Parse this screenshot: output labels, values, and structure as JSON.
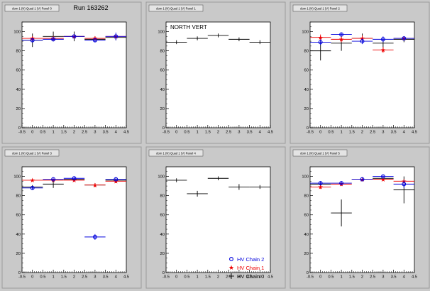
{
  "colors": {
    "pad_bg": "#c9c9c9",
    "frame_bg": "#ffffff",
    "axis": "#000000",
    "chain0": "#000000",
    "chain1": "#ee0000",
    "chain2": "#0000dd"
  },
  "chart_data": [
    {
      "type": "scatter",
      "title": "Run 163262",
      "small_title": "dom 1 (N) Quad 1 (V) Panel 0",
      "xlim": [
        -0.5,
        4.5
      ],
      "ylim": [
        0,
        110
      ],
      "xticks": [
        -0.5,
        0,
        0.5,
        1,
        1.5,
        2,
        2.5,
        3,
        3.5,
        4,
        4.5
      ],
      "xtick_labels": [
        "-0.5",
        "0",
        "0.5",
        "1",
        "1.5",
        "2",
        "2.5",
        "3",
        "3.5",
        "4",
        "4.5"
      ],
      "yticks": [
        0,
        20,
        40,
        60,
        80,
        100
      ],
      "ytick_labels": [
        "0",
        "20",
        "40",
        "60",
        "80",
        "100"
      ],
      "series": [
        {
          "key": "chain0",
          "points": [
            {
              "x": 0,
              "y": 91,
              "err": 7
            },
            {
              "x": 1,
              "y": 95,
              "err": 5
            },
            {
              "x": 2,
              "y": 95,
              "err": 5
            },
            {
              "x": 3,
              "y": 92,
              "err": 3
            },
            {
              "x": 4,
              "y": 94,
              "err": 3
            }
          ]
        },
        {
          "key": "chain1",
          "points": [
            {
              "x": 0,
              "y": 93,
              "err": 2
            },
            {
              "x": 1,
              "y": 93,
              "err": 2
            },
            {
              "x": 2,
              "y": 95,
              "err": 2
            },
            {
              "x": 3,
              "y": 93,
              "err": 2
            },
            {
              "x": 4,
              "y": 95,
              "err": 2
            }
          ]
        },
        {
          "key": "chain2",
          "points": [
            {
              "x": 0,
              "y": 91,
              "err": 2
            },
            {
              "x": 1,
              "y": 92,
              "err": 2
            },
            {
              "x": 2,
              "y": 95,
              "err": 2
            },
            {
              "x": 3,
              "y": 91,
              "err": 2
            },
            {
              "x": 4,
              "y": 95,
              "err": 4
            }
          ]
        }
      ]
    },
    {
      "type": "scatter",
      "title": "",
      "small_title": "dom 1 (N) Quad 1 (V) Panel 1",
      "annotation": "NORTH VERT",
      "xlim": [
        -0.5,
        4.5
      ],
      "ylim": [
        0,
        110
      ],
      "xticks": [
        -0.5,
        0,
        0.5,
        1,
        1.5,
        2,
        2.5,
        3,
        3.5,
        4,
        4.5
      ],
      "xtick_labels": [
        "-0.5",
        "0",
        "0.5",
        "1",
        "1.5",
        "2",
        "2.5",
        "3",
        "3.5",
        "4",
        "4.5"
      ],
      "yticks": [
        0,
        20,
        40,
        60,
        80,
        100
      ],
      "ytick_labels": [
        "0",
        "20",
        "40",
        "60",
        "80",
        "100"
      ],
      "series": [
        {
          "key": "chain0",
          "points": [
            {
              "x": 0,
              "y": 89,
              "err": 2
            },
            {
              "x": 1,
              "y": 93,
              "err": 2
            },
            {
              "x": 2,
              "y": 96,
              "err": 2
            },
            {
              "x": 3,
              "y": 92,
              "err": 2
            },
            {
              "x": 4,
              "y": 89,
              "err": 2
            }
          ]
        }
      ]
    },
    {
      "type": "scatter",
      "title": "",
      "small_title": "dom 1 (N) Quad 1 (V) Panel 2",
      "xlim": [
        -0.5,
        4.5
      ],
      "ylim": [
        0,
        110
      ],
      "xticks": [
        -0.5,
        0,
        0.5,
        1,
        1.5,
        2,
        2.5,
        3,
        3.5,
        4,
        4.5
      ],
      "xtick_labels": [
        "-0.5",
        "0",
        "0.5",
        "1",
        "1.5",
        "2",
        "2.5",
        "3",
        "3.5",
        "4",
        "4.5"
      ],
      "yticks": [
        0,
        20,
        40,
        60,
        80,
        100
      ],
      "ytick_labels": [
        "0",
        "20",
        "40",
        "60",
        "80",
        "100"
      ],
      "series": [
        {
          "key": "chain0",
          "points": [
            {
              "x": 0,
              "y": 80,
              "err": 10
            },
            {
              "x": 1,
              "y": 88,
              "err": 8
            },
            {
              "x": 2,
              "y": 93,
              "err": 5
            },
            {
              "x": 3,
              "y": 88,
              "err": 5
            },
            {
              "x": 4,
              "y": 92,
              "err": 3
            }
          ]
        },
        {
          "key": "chain1",
          "points": [
            {
              "x": 0,
              "y": 94,
              "err": 3
            },
            {
              "x": 1,
              "y": 92,
              "err": 3
            },
            {
              "x": 2,
              "y": 93,
              "err": 3
            },
            {
              "x": 3,
              "y": 81,
              "err": 3
            },
            {
              "x": 4,
              "y": 93,
              "err": 2
            }
          ]
        },
        {
          "key": "chain2",
          "points": [
            {
              "x": 0,
              "y": 89,
              "err": 3
            },
            {
              "x": 1,
              "y": 97,
              "err": 2
            },
            {
              "x": 2,
              "y": 90,
              "err": 3
            },
            {
              "x": 3,
              "y": 92,
              "err": 3
            },
            {
              "x": 4,
              "y": 93,
              "err": 2
            }
          ]
        }
      ]
    },
    {
      "type": "scatter",
      "title": "",
      "small_title": "dom 1 (N) Quad 1 (V) Panel 3",
      "xlim": [
        -0.5,
        4.5
      ],
      "ylim": [
        0,
        110
      ],
      "xticks": [
        -0.5,
        0,
        0.5,
        1,
        1.5,
        2,
        2.5,
        3,
        3.5,
        4,
        4.5
      ],
      "xtick_labels": [
        "-0.5",
        "0",
        "0.5",
        "1",
        "1.5",
        "2",
        "2.5",
        "3",
        "3.5",
        "4",
        "4.5"
      ],
      "yticks": [
        0,
        20,
        40,
        60,
        80,
        100
      ],
      "ytick_labels": [
        "0",
        "20",
        "40",
        "60",
        "80",
        "100"
      ],
      "series": [
        {
          "key": "chain0",
          "points": [
            {
              "x": 0,
              "y": 89,
              "err": 2
            },
            {
              "x": 1,
              "y": 92,
              "err": 4
            },
            {
              "x": 2,
              "y": 97,
              "err": 2
            },
            {
              "x": 3,
              "y": 91,
              "err": 2
            },
            {
              "x": 4,
              "y": 96,
              "err": 3
            }
          ]
        },
        {
          "key": "chain1",
          "points": [
            {
              "x": 0,
              "y": 96,
              "err": 1
            },
            {
              "x": 1,
              "y": 96,
              "err": 1
            },
            {
              "x": 2,
              "y": 96,
              "err": 1
            },
            {
              "x": 3,
              "y": 91,
              "err": 2
            },
            {
              "x": 4,
              "y": 95,
              "err": 2
            }
          ]
        },
        {
          "key": "chain2",
          "points": [
            {
              "x": 0,
              "y": 88,
              "err": 2
            },
            {
              "x": 1,
              "y": 97,
              "err": 1
            },
            {
              "x": 2,
              "y": 98,
              "err": 1
            },
            {
              "x": 3,
              "y": 37,
              "err": 3
            },
            {
              "x": 4,
              "y": 97,
              "err": 2
            }
          ]
        }
      ]
    },
    {
      "type": "scatter",
      "title": "",
      "small_title": "dom 1 (N) Quad 1 (V) Panel 4",
      "xlim": [
        -0.5,
        4.5
      ],
      "ylim": [
        0,
        110
      ],
      "xticks": [
        -0.5,
        0,
        0.5,
        1,
        1.5,
        2,
        2.5,
        3,
        3.5,
        4,
        4.5
      ],
      "xtick_labels": [
        "-0.5",
        "0",
        "0.5",
        "1",
        "1.5",
        "2",
        "2.5",
        "3",
        "3.5",
        "4",
        "4.5"
      ],
      "yticks": [
        0,
        20,
        40,
        60,
        80,
        100
      ],
      "ytick_labels": [
        "0",
        "20",
        "40",
        "60",
        "80",
        "100"
      ],
      "legend": [
        {
          "key": "chain2",
          "label": "HV Chain 2",
          "marker": "circle"
        },
        {
          "key": "chain1",
          "label": "HV Chain 1",
          "marker": "star"
        },
        {
          "key": "chain0",
          "label": "HV Chain 0",
          "marker": "plus"
        }
      ],
      "series": [
        {
          "key": "chain0",
          "points": [
            {
              "x": 0,
              "y": 96,
              "err": 2
            },
            {
              "x": 1,
              "y": 82,
              "err": 3
            },
            {
              "x": 2,
              "y": 98,
              "err": 2
            },
            {
              "x": 3,
              "y": 89,
              "err": 3
            },
            {
              "x": 4,
              "y": 89,
              "err": 2
            }
          ]
        }
      ]
    },
    {
      "type": "scatter",
      "title": "",
      "small_title": "dom 1 (N) Quad 1 (V) Panel 5",
      "xlim": [
        -0.5,
        4.5
      ],
      "ylim": [
        0,
        110
      ],
      "xticks": [
        -0.5,
        0,
        0.5,
        1,
        1.5,
        2,
        2.5,
        3,
        3.5,
        4,
        4.5
      ],
      "xtick_labels": [
        "-0.5",
        "0",
        "0.5",
        "1",
        "1.5",
        "2",
        "2.5",
        "3",
        "3.5",
        "4",
        "4.5"
      ],
      "yticks": [
        0,
        20,
        40,
        60,
        80,
        100
      ],
      "ytick_labels": [
        "0",
        "20",
        "40",
        "60",
        "80",
        "100"
      ],
      "series": [
        {
          "key": "chain0",
          "points": [
            {
              "x": 0,
              "y": 92,
              "err": 2
            },
            {
              "x": 1,
              "y": 62,
              "err": 14
            },
            {
              "x": 2,
              "y": 97,
              "err": 2
            },
            {
              "x": 3,
              "y": 98,
              "err": 2
            },
            {
              "x": 4,
              "y": 86,
              "err": 14
            }
          ]
        },
        {
          "key": "chain1",
          "points": [
            {
              "x": 0,
              "y": 89,
              "err": 2
            },
            {
              "x": 1,
              "y": 92,
              "err": 2
            },
            {
              "x": 2,
              "y": 97,
              "err": 1
            },
            {
              "x": 3,
              "y": 97,
              "err": 1
            },
            {
              "x": 4,
              "y": 95,
              "err": 2
            }
          ]
        },
        {
          "key": "chain2",
          "points": [
            {
              "x": 0,
              "y": 93,
              "err": 2
            },
            {
              "x": 1,
              "y": 93,
              "err": 2
            },
            {
              "x": 2,
              "y": 97,
              "err": 1
            },
            {
              "x": 3,
              "y": 100,
              "err": 1
            },
            {
              "x": 4,
              "y": 92,
              "err": 4
            }
          ]
        }
      ]
    }
  ]
}
